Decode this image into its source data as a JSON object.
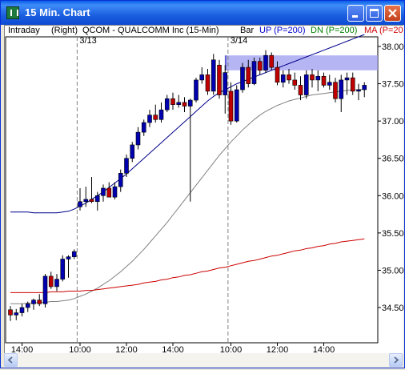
{
  "window": {
    "title": "15 Min. Chart"
  },
  "info": {
    "mode": "Intraday",
    "side": "(Right)",
    "symbol": "QCOM - QUALCOMM Inc  (15-Min)",
    "style": "Bar",
    "up_label": "UP (P=200)",
    "dn_label": "DN (P=200)",
    "ma_label": "MA (P=20",
    "up_color": "#0000CC",
    "dn_color": "#008000",
    "ma_color": "#CC0000"
  },
  "chart_data": {
    "type": "candlestick",
    "y_ticks": [
      "38.00",
      "37.50",
      "37.00",
      "36.50",
      "36.00",
      "35.50",
      "35.00",
      "34.50"
    ],
    "ylim": [
      34.2,
      38.25
    ],
    "x_ticks": [
      {
        "label": "14:00",
        "i": 2
      },
      {
        "label": "10:00",
        "i": 12
      },
      {
        "label": "12:00",
        "i": 20
      },
      {
        "label": "14:00",
        "i": 28
      },
      {
        "label": "10:00",
        "i": 38
      },
      {
        "label": "12:00",
        "i": 46
      },
      {
        "label": "14:00",
        "i": 54
      }
    ],
    "day_separators": [
      {
        "label": "3/13",
        "i": 11.5
      },
      {
        "label": "3/14",
        "i": 37.5
      }
    ],
    "highlight_band": {
      "from": 37.68,
      "to": 37.88
    },
    "candles": [
      [
        34.47,
        34.52,
        34.32,
        34.4
      ],
      [
        34.4,
        34.48,
        34.33,
        34.43
      ],
      [
        34.43,
        34.55,
        34.38,
        34.5
      ],
      [
        34.5,
        34.58,
        34.44,
        34.55
      ],
      [
        34.55,
        34.62,
        34.47,
        34.6
      ],
      [
        34.6,
        34.68,
        34.52,
        34.55
      ],
      [
        34.55,
        34.95,
        34.5,
        34.92
      ],
      [
        34.92,
        34.98,
        34.75,
        34.78
      ],
      [
        34.78,
        34.95,
        34.72,
        34.88
      ],
      [
        34.88,
        35.2,
        34.85,
        35.15
      ],
      [
        35.15,
        35.2,
        34.9,
        35.18
      ],
      [
        35.18,
        35.28,
        35.15,
        35.25
      ],
      [
        35.85,
        36.1,
        35.8,
        35.92
      ],
      [
        35.92,
        36.12,
        35.85,
        35.95
      ],
      [
        35.95,
        36.25,
        35.9,
        35.92
      ],
      [
        35.92,
        36.05,
        35.8,
        36.0
      ],
      [
        36.0,
        36.15,
        35.92,
        36.1
      ],
      [
        36.1,
        36.18,
        35.98,
        35.98
      ],
      [
        35.98,
        36.18,
        35.95,
        36.12
      ],
      [
        36.12,
        36.35,
        36.05,
        36.3
      ],
      [
        36.3,
        36.55,
        36.25,
        36.5
      ],
      [
        36.5,
        36.72,
        36.45,
        36.68
      ],
      [
        36.68,
        36.92,
        36.62,
        36.85
      ],
      [
        36.85,
        37.02,
        36.8,
        36.98
      ],
      [
        36.98,
        37.15,
        36.92,
        37.08
      ],
      [
        37.08,
        37.22,
        36.98,
        37.02
      ],
      [
        37.02,
        37.25,
        36.98,
        37.15
      ],
      [
        37.15,
        37.35,
        37.12,
        37.3
      ],
      [
        37.3,
        37.38,
        37.15,
        37.22
      ],
      [
        37.22,
        37.35,
        37.18,
        37.25
      ],
      [
        37.25,
        37.32,
        37.12,
        37.2
      ],
      [
        37.2,
        37.3,
        35.92,
        37.28
      ],
      [
        37.28,
        37.58,
        37.25,
        37.55
      ],
      [
        37.55,
        37.72,
        37.5,
        37.62
      ],
      [
        37.62,
        37.7,
        37.35,
        37.4
      ],
      [
        37.4,
        37.9,
        37.35,
        37.82
      ],
      [
        37.75,
        37.82,
        37.3,
        37.35
      ],
      [
        37.35,
        37.75,
        37.1,
        37.65
      ],
      [
        37.4,
        37.52,
        36.95,
        37.0
      ],
      [
        37.0,
        37.48,
        36.98,
        37.42
      ],
      [
        37.42,
        37.78,
        37.38,
        37.72
      ],
      [
        37.72,
        37.82,
        37.45,
        37.5
      ],
      [
        37.5,
        37.85,
        37.48,
        37.8
      ],
      [
        37.8,
        37.85,
        37.62,
        37.68
      ],
      [
        37.68,
        37.95,
        37.65,
        37.88
      ],
      [
        37.88,
        37.92,
        37.68,
        37.72
      ],
      [
        37.72,
        37.8,
        37.48,
        37.52
      ],
      [
        37.52,
        37.68,
        37.45,
        37.62
      ],
      [
        37.62,
        37.7,
        37.5,
        37.55
      ],
      [
        37.55,
        37.65,
        37.42,
        37.48
      ],
      [
        37.48,
        37.6,
        37.28,
        37.35
      ],
      [
        37.35,
        37.68,
        37.3,
        37.62
      ],
      [
        37.62,
        37.7,
        37.45,
        37.55
      ],
      [
        37.55,
        37.68,
        37.4,
        37.6
      ],
      [
        37.6,
        37.65,
        37.45,
        37.48
      ],
      [
        37.48,
        37.62,
        37.42,
        37.52
      ],
      [
        37.52,
        37.58,
        37.25,
        37.3
      ],
      [
        37.3,
        37.62,
        37.12,
        37.55
      ],
      [
        37.55,
        37.65,
        37.35,
        37.58
      ],
      [
        37.58,
        37.65,
        37.35,
        37.4
      ],
      [
        37.4,
        37.5,
        37.28,
        37.42
      ],
      [
        37.42,
        37.52,
        37.32,
        37.48
      ]
    ],
    "up_band": [
      35.78,
      35.78,
      35.78,
      35.78,
      35.77,
      35.77,
      35.77,
      35.77,
      35.77,
      35.78,
      35.79,
      35.82,
      35.86,
      35.9,
      35.95,
      36.0,
      36.05,
      36.11,
      36.17,
      36.23,
      36.29,
      36.36,
      36.43,
      36.5,
      36.57,
      36.64,
      36.71,
      36.78,
      36.85,
      36.92,
      36.99,
      37.06,
      37.13,
      37.2,
      37.27,
      37.33,
      37.38,
      37.42,
      37.46,
      37.5,
      37.53,
      37.56,
      37.59,
      37.62,
      37.65,
      37.68,
      37.71,
      37.74,
      37.77,
      37.8,
      37.83,
      37.86,
      37.89,
      37.92,
      37.95,
      37.98,
      38.01,
      38.04,
      38.07,
      38.1,
      38.13,
      38.16
    ],
    "dn_band": [
      34.55,
      34.55,
      34.55,
      34.56,
      34.56,
      34.57,
      34.57,
      34.58,
      34.58,
      34.59,
      34.6,
      34.62,
      34.65,
      34.68,
      34.72,
      34.76,
      34.81,
      34.86,
      34.92,
      34.98,
      35.05,
      35.12,
      35.2,
      35.28,
      35.37,
      35.46,
      35.55,
      35.64,
      35.74,
      35.84,
      35.94,
      36.04,
      36.14,
      36.24,
      36.34,
      36.44,
      36.54,
      36.63,
      36.72,
      36.8,
      36.88,
      36.95,
      37.02,
      37.08,
      37.13,
      37.17,
      37.21,
      37.24,
      37.27,
      37.29,
      37.31,
      37.33,
      37.35,
      37.36,
      37.37,
      37.38,
      37.39,
      37.4,
      37.41,
      37.42,
      37.42,
      37.43
    ],
    "ma_line": [
      34.7,
      34.7,
      34.7,
      34.7,
      34.7,
      34.7,
      34.7,
      34.71,
      34.71,
      34.71,
      34.72,
      34.72,
      34.72,
      34.73,
      34.73,
      34.74,
      34.75,
      34.76,
      34.77,
      34.78,
      34.79,
      34.8,
      34.81,
      34.83,
      34.84,
      34.85,
      34.87,
      34.88,
      34.9,
      34.91,
      34.93,
      34.94,
      34.96,
      34.98,
      34.99,
      35.01,
      35.03,
      35.04,
      35.06,
      35.08,
      35.1,
      35.12,
      35.13,
      35.15,
      35.17,
      35.19,
      35.2,
      35.22,
      35.24,
      35.26,
      35.27,
      35.29,
      35.3,
      35.32,
      35.33,
      35.35,
      35.36,
      35.38,
      35.39,
      35.4,
      35.41,
      35.42
    ]
  }
}
